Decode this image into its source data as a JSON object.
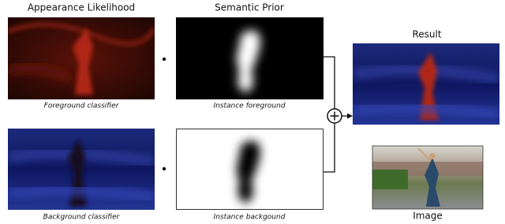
{
  "headers": {
    "appearance": "Appearance Likelihood",
    "prior": "Semantic Prior",
    "result": "Result"
  },
  "captions": {
    "foreground_classifier": "Foreground classifier",
    "instance_foreground": "Instance foreground",
    "background_classifier": "Background classifier",
    "instance_background": "Instance backgound",
    "image": "Image"
  }
}
